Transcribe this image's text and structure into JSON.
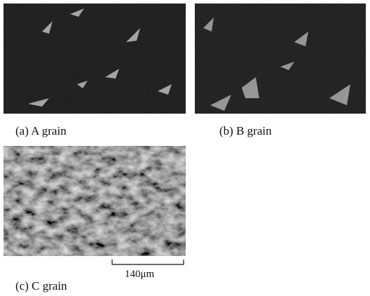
{
  "figure": {
    "panels": [
      {
        "caption": "(a) A grain"
      },
      {
        "caption": "(b) B grain"
      },
      {
        "caption": "(c) C grain"
      }
    ],
    "scale_bar": "140μm"
  }
}
